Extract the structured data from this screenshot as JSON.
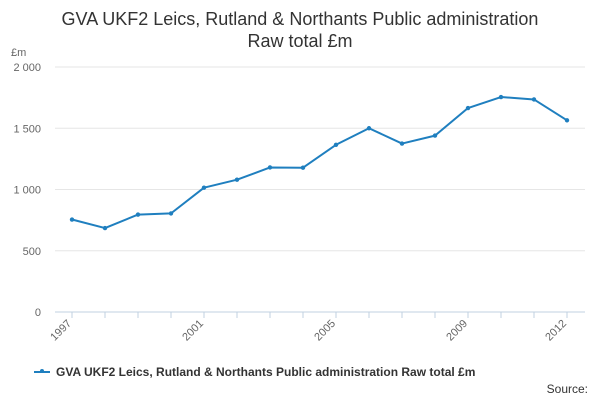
{
  "colors": {
    "series": "#1f7fbf",
    "grid": "#e6e6e6",
    "axis": "#c0d0e0",
    "text": "#333333",
    "tick_text": "#666666"
  },
  "title": {
    "line1": "GVA UKF2 Leics, Rutland & Northants Public administration",
    "line2": "Raw total £m"
  },
  "source_label": "Source:",
  "chart_data": {
    "type": "line",
    "title": "GVA UKF2 Leics, Rutland & Northants Public administration Raw total £m",
    "ylabel": "£m",
    "xlabel": "",
    "x": [
      1997,
      1998,
      1999,
      2000,
      2001,
      2002,
      2003,
      2004,
      2005,
      2006,
      2007,
      2008,
      2009,
      2010,
      2011,
      2012
    ],
    "series": [
      {
        "name": "GVA UKF2 Leics, Rutland & Northants Public administration Raw total £m",
        "values": [
          755,
          685,
          795,
          805,
          1015,
          1080,
          1180,
          1178,
          1365,
          1500,
          1375,
          1440,
          1665,
          1755,
          1735,
          1565
        ]
      }
    ],
    "ylim": [
      0,
      2000
    ],
    "yticks": [
      0,
      500,
      1000,
      1500,
      2000
    ],
    "ytick_labels": [
      "0",
      "500",
      "1 000",
      "1 500",
      "2 000"
    ],
    "xticks": [
      1997,
      2001,
      2005,
      2009,
      2012
    ],
    "xtick_labels": [
      "1997",
      "2001",
      "2005",
      "2009",
      "2012"
    ],
    "grid": true,
    "legend": "bottom"
  }
}
